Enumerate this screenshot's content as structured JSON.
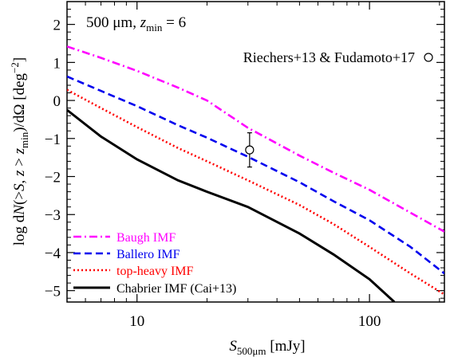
{
  "chart_data": {
    "type": "line",
    "panel_label": {
      "prefix": "500 μm, ",
      "var": "z",
      "sub": "min",
      "suffix": " = 6"
    },
    "xlabel": {
      "var": "S",
      "sub": "500μm",
      "suffix": " [mJy]"
    },
    "ylabel": {
      "p1": "log d",
      "N": "N",
      "p2": "(>",
      "S": "S",
      "p3": ", ",
      "z": "z",
      "p4": " > ",
      "z2": "z",
      "sub": "min",
      "p5": ")/dΩ [deg",
      "sup": "−2",
      "p6": "]"
    },
    "xscale": "log",
    "xlim": [
      5,
      210
    ],
    "ylim": [
      -5.3,
      2.6
    ],
    "xticks": [
      10,
      100
    ],
    "xtick_labels": [
      "10",
      "100"
    ],
    "yticks": [
      -5,
      -4,
      -3,
      -2,
      -1,
      0,
      1,
      2
    ],
    "ytick_labels": [
      "−5",
      "−4",
      "−3",
      "−2",
      "−1",
      "0",
      "1",
      "2"
    ],
    "legend_position": "bottom-left",
    "series": [
      {
        "name": "Baugh IMF",
        "color": "#ff00ff",
        "dash": "dashdot",
        "x": [
          5,
          7,
          10,
          15,
          20,
          30,
          50,
          70,
          100,
          150,
          210
        ],
        "y": [
          1.42,
          1.12,
          0.78,
          0.34,
          0.0,
          -0.72,
          -1.45,
          -1.9,
          -2.35,
          -2.95,
          -3.45
        ]
      },
      {
        "name": "Ballero IMF",
        "color": "#0000ee",
        "dash": "dashed",
        "x": [
          5,
          7,
          10,
          15,
          20,
          30,
          50,
          70,
          100,
          150,
          210
        ],
        "y": [
          0.63,
          0.25,
          -0.15,
          -0.65,
          -0.98,
          -1.48,
          -2.15,
          -2.65,
          -3.15,
          -3.85,
          -4.55
        ]
      },
      {
        "name": "top-heavy IMF",
        "color": "#ff0000",
        "dash": "dotted",
        "x": [
          5,
          7,
          10,
          15,
          20,
          30,
          50,
          70,
          100,
          150,
          210
        ],
        "y": [
          0.28,
          -0.2,
          -0.7,
          -1.25,
          -1.6,
          -2.1,
          -2.75,
          -3.25,
          -3.85,
          -4.55,
          -5.1
        ]
      },
      {
        "name": "Chabrier IMF (Cai+13)",
        "color": "#000000",
        "dash": "solid",
        "x": [
          5,
          7,
          10,
          15,
          20,
          30,
          50,
          70,
          100,
          128
        ],
        "y": [
          -0.25,
          -0.95,
          -1.55,
          -2.1,
          -2.4,
          -2.8,
          -3.5,
          -4.05,
          -4.7,
          -5.3
        ]
      }
    ],
    "observation": {
      "label": "Riechers+13 & Fudamoto+17",
      "x": 30.5,
      "y": -1.3,
      "yerr_low": 0.45,
      "yerr_high": 0.45
    }
  }
}
